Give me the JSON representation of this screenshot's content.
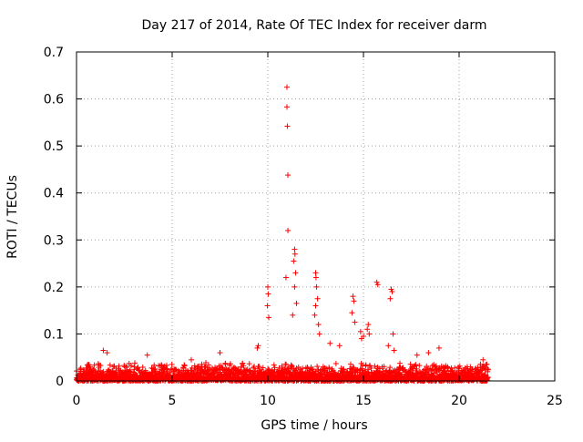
{
  "chart_data": {
    "type": "scatter",
    "title": "Day 217 of 2014, Rate Of TEC Index for receiver darm",
    "xlabel": "GPS time / hours",
    "ylabel": "ROTI / TECUs",
    "xlim": [
      0,
      25
    ],
    "ylim": [
      0,
      0.7
    ],
    "x_ticks": [
      "0",
      "5",
      "10",
      "15",
      "20",
      "25"
    ],
    "y_ticks": [
      "0",
      "0.1",
      "0.2",
      "0.3",
      "0.4",
      "0.5",
      "0.6",
      "0.7"
    ],
    "grid": true,
    "marker": "+",
    "color": "#ff0000",
    "series": [
      {
        "x": [
          11.0,
          11.0,
          11.02,
          11.05,
          11.05,
          10.95,
          11.4,
          11.42,
          11.35,
          11.45,
          11.4,
          11.5,
          11.3,
          12.5,
          12.52,
          12.55,
          12.6,
          12.5,
          12.45,
          12.7,
          12.65,
          14.45,
          14.5,
          14.4,
          14.55,
          15.7,
          15.75,
          16.45,
          16.5,
          16.4,
          16.55,
          10.0,
          10.02,
          9.98,
          10.05,
          15.25,
          15.2,
          15.3,
          14.85,
          14.9,
          15.0,
          9.5,
          9.45,
          7.5,
          1.4,
          1.6,
          3.7,
          6.0,
          18.4,
          18.95,
          21.25,
          13.25,
          13.75,
          16.6,
          17.8,
          16.3
        ],
        "y": [
          0.625,
          0.583,
          0.542,
          0.438,
          0.32,
          0.22,
          0.28,
          0.27,
          0.255,
          0.23,
          0.2,
          0.165,
          0.14,
          0.23,
          0.22,
          0.2,
          0.175,
          0.16,
          0.14,
          0.1,
          0.12,
          0.18,
          0.17,
          0.145,
          0.125,
          0.21,
          0.205,
          0.195,
          0.19,
          0.175,
          0.1,
          0.2,
          0.185,
          0.16,
          0.135,
          0.12,
          0.11,
          0.1,
          0.105,
          0.09,
          0.095,
          0.075,
          0.07,
          0.06,
          0.065,
          0.06,
          0.055,
          0.045,
          0.06,
          0.07,
          0.045,
          0.08,
          0.075,
          0.065,
          0.055,
          0.075
        ]
      }
    ],
    "baseline_band": {
      "x_start": 0.0,
      "x_end": 21.5,
      "y_min": 0.0,
      "y_max": 0.04
    }
  }
}
